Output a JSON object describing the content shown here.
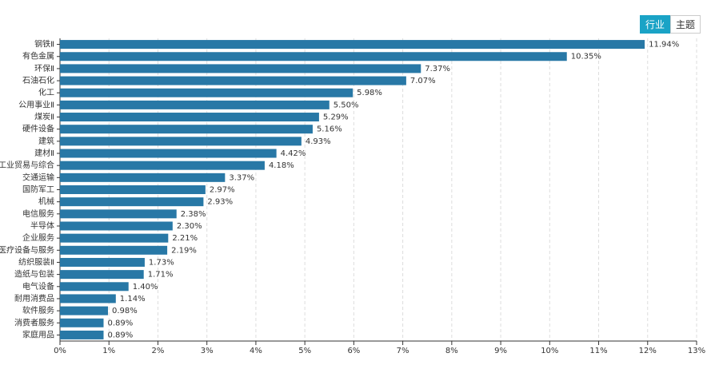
{
  "tabs": [
    "行业",
    "主题"
  ],
  "chart_data": {
    "type": "hbar",
    "color": "#2878a6",
    "grid": true,
    "categories": [
      "钢铁Ⅱ",
      "有色金属",
      "环保Ⅱ",
      "石油石化",
      "化工",
      "公用事业Ⅱ",
      "煤炭Ⅱ",
      "硬件设备",
      "建筑",
      "建材Ⅱ",
      "工业贸易与综合",
      "交通运输",
      "国防军工",
      "机械",
      "电信服务",
      "半导体",
      "企业服务",
      "医疗设备与服务",
      "纺织服装Ⅱ",
      "造纸与包装",
      "电气设备",
      "耐用消费品",
      "软件服务",
      "消费者服务",
      "家庭用品"
    ],
    "values": [
      11.94,
      10.35,
      7.37,
      7.07,
      5.98,
      5.5,
      5.29,
      5.16,
      4.93,
      4.42,
      4.18,
      3.37,
      2.97,
      2.93,
      2.38,
      2.3,
      2.21,
      2.19,
      1.73,
      1.71,
      1.4,
      1.14,
      0.98,
      0.89,
      0.89
    ],
    "value_labels": [
      "11.94%",
      "10.35%",
      "7.37%",
      "7.07%",
      "5.98%",
      "5.50%",
      "5.29%",
      "5.16%",
      "4.93%",
      "4.42%",
      "4.18%",
      "3.37%",
      "2.97%",
      "2.93%",
      "2.38%",
      "2.30%",
      "2.21%",
      "2.19%",
      "1.73%",
      "1.71%",
      "1.40%",
      "1.14%",
      "0.98%",
      "0.89%",
      "0.89%"
    ],
    "xlim": [
      0,
      13
    ],
    "xticks": [
      {
        "value": 0,
        "label": "0%"
      },
      {
        "value": 1,
        "label": "1%"
      },
      {
        "value": 2,
        "label": "2%"
      },
      {
        "value": 3,
        "label": "3%"
      },
      {
        "value": 4,
        "label": "4%"
      },
      {
        "value": 5,
        "label": "5%"
      },
      {
        "value": 6,
        "label": "6%"
      },
      {
        "value": 7,
        "label": "7%"
      },
      {
        "value": 8,
        "label": "8%"
      },
      {
        "value": 9,
        "label": "9%"
      },
      {
        "value": 10,
        "label": "10%"
      },
      {
        "value": 11,
        "label": "11%"
      },
      {
        "value": 12,
        "label": "12%"
      },
      {
        "value": 13,
        "label": "13%"
      }
    ]
  }
}
